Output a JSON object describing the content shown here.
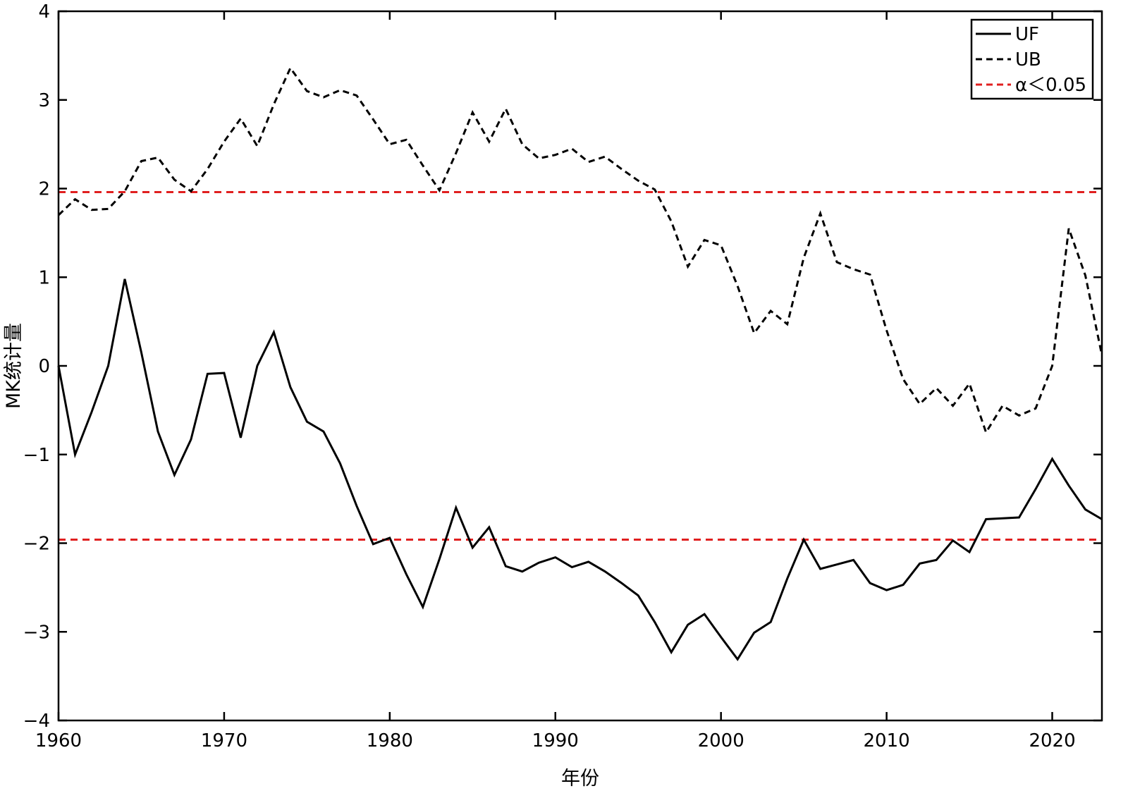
{
  "chart_data": {
    "type": "line",
    "title": "",
    "xlabel": "年份",
    "ylabel": "MK统计量",
    "xlim": [
      1960,
      2023
    ],
    "ylim": [
      -4,
      4
    ],
    "xticks": [
      1960,
      1970,
      1980,
      1990,
      2000,
      2010,
      2020
    ],
    "yticks": [
      4,
      3,
      2,
      1,
      0,
      -1,
      -2,
      -3,
      -4
    ],
    "ytick_labels": [
      "4",
      "3",
      "2",
      "1",
      "0",
      "−1",
      "−2",
      "−3",
      "−4"
    ],
    "grid": false,
    "legend_position": "top-right",
    "x": [
      1960,
      1961,
      1962,
      1963,
      1964,
      1965,
      1966,
      1967,
      1968,
      1969,
      1970,
      1971,
      1972,
      1973,
      1974,
      1975,
      1976,
      1977,
      1978,
      1979,
      1980,
      1981,
      1982,
      1983,
      1984,
      1985,
      1986,
      1987,
      1988,
      1989,
      1990,
      1991,
      1992,
      1993,
      1994,
      1995,
      1996,
      1997,
      1998,
      1999,
      2000,
      2001,
      2002,
      2003,
      2004,
      2005,
      2006,
      2007,
      2008,
      2009,
      2010,
      2011,
      2012,
      2013,
      2014,
      2015,
      2016,
      2017,
      2018,
      2019,
      2020,
      2021,
      2022,
      2023
    ],
    "series": [
      {
        "name": "UF",
        "style": "solid",
        "color": "#000000",
        "values": [
          0,
          -1.0,
          -0.52,
          0,
          0.98,
          0.15,
          -0.74,
          -1.23,
          -0.83,
          -0.09,
          -0.08,
          -0.81,
          0,
          0.38,
          -0.24,
          -0.63,
          -0.74,
          -1.1,
          -1.58,
          -2.01,
          -1.94,
          -2.35,
          -2.72,
          -2.18,
          -1.6,
          -2.05,
          -1.82,
          -2.26,
          -2.32,
          -2.22,
          -2.16,
          -2.27,
          -2.21,
          -2.32,
          -2.45,
          -2.59,
          -2.89,
          -3.23,
          -2.92,
          -2.8,
          -3.06,
          -3.31,
          -3.01,
          -2.89,
          -2.4,
          -1.96,
          -2.29,
          -2.24,
          -2.19,
          -2.45,
          -2.53,
          -2.47,
          -2.23,
          -2.19,
          -1.97,
          -2.1,
          -1.73,
          -1.72,
          -1.71,
          -1.39,
          -1.05,
          -1.35,
          -1.62,
          -1.73
        ]
      },
      {
        "name": "UB",
        "style": "dashed",
        "color": "#000000",
        "values": [
          1.7,
          1.88,
          1.76,
          1.77,
          1.97,
          2.31,
          2.35,
          2.1,
          1.97,
          2.22,
          2.53,
          2.79,
          2.48,
          2.95,
          3.36,
          3.1,
          3.03,
          3.11,
          3.05,
          2.78,
          2.5,
          2.55,
          2.26,
          1.98,
          2.4,
          2.86,
          2.53,
          2.9,
          2.5,
          2.34,
          2.38,
          2.45,
          2.3,
          2.36,
          2.22,
          2.09,
          1.99,
          1.63,
          1.12,
          1.42,
          1.36,
          0.9,
          0.37,
          0.62,
          0.47,
          1.22,
          1.72,
          1.17,
          1.09,
          1.03,
          0.4,
          -0.15,
          -0.43,
          -0.25,
          -0.45,
          -0.2,
          -0.75,
          -0.45,
          -0.56,
          -0.48,
          0,
          1.55,
          1.02,
          0.12
        ]
      }
    ],
    "reference_lines": [
      {
        "name": "α＜0.05",
        "style": "dashed",
        "color": "#e02020",
        "y": 1.96
      },
      {
        "name": "α＜0.05",
        "style": "dashed",
        "color": "#e02020",
        "y": -1.96
      }
    ],
    "legend": [
      {
        "label": "UF",
        "style": "solid",
        "color": "#000000"
      },
      {
        "label": "UB",
        "style": "dashed",
        "color": "#000000"
      },
      {
        "label": "α＜0.05",
        "style": "dashed",
        "color": "#e02020"
      }
    ]
  }
}
